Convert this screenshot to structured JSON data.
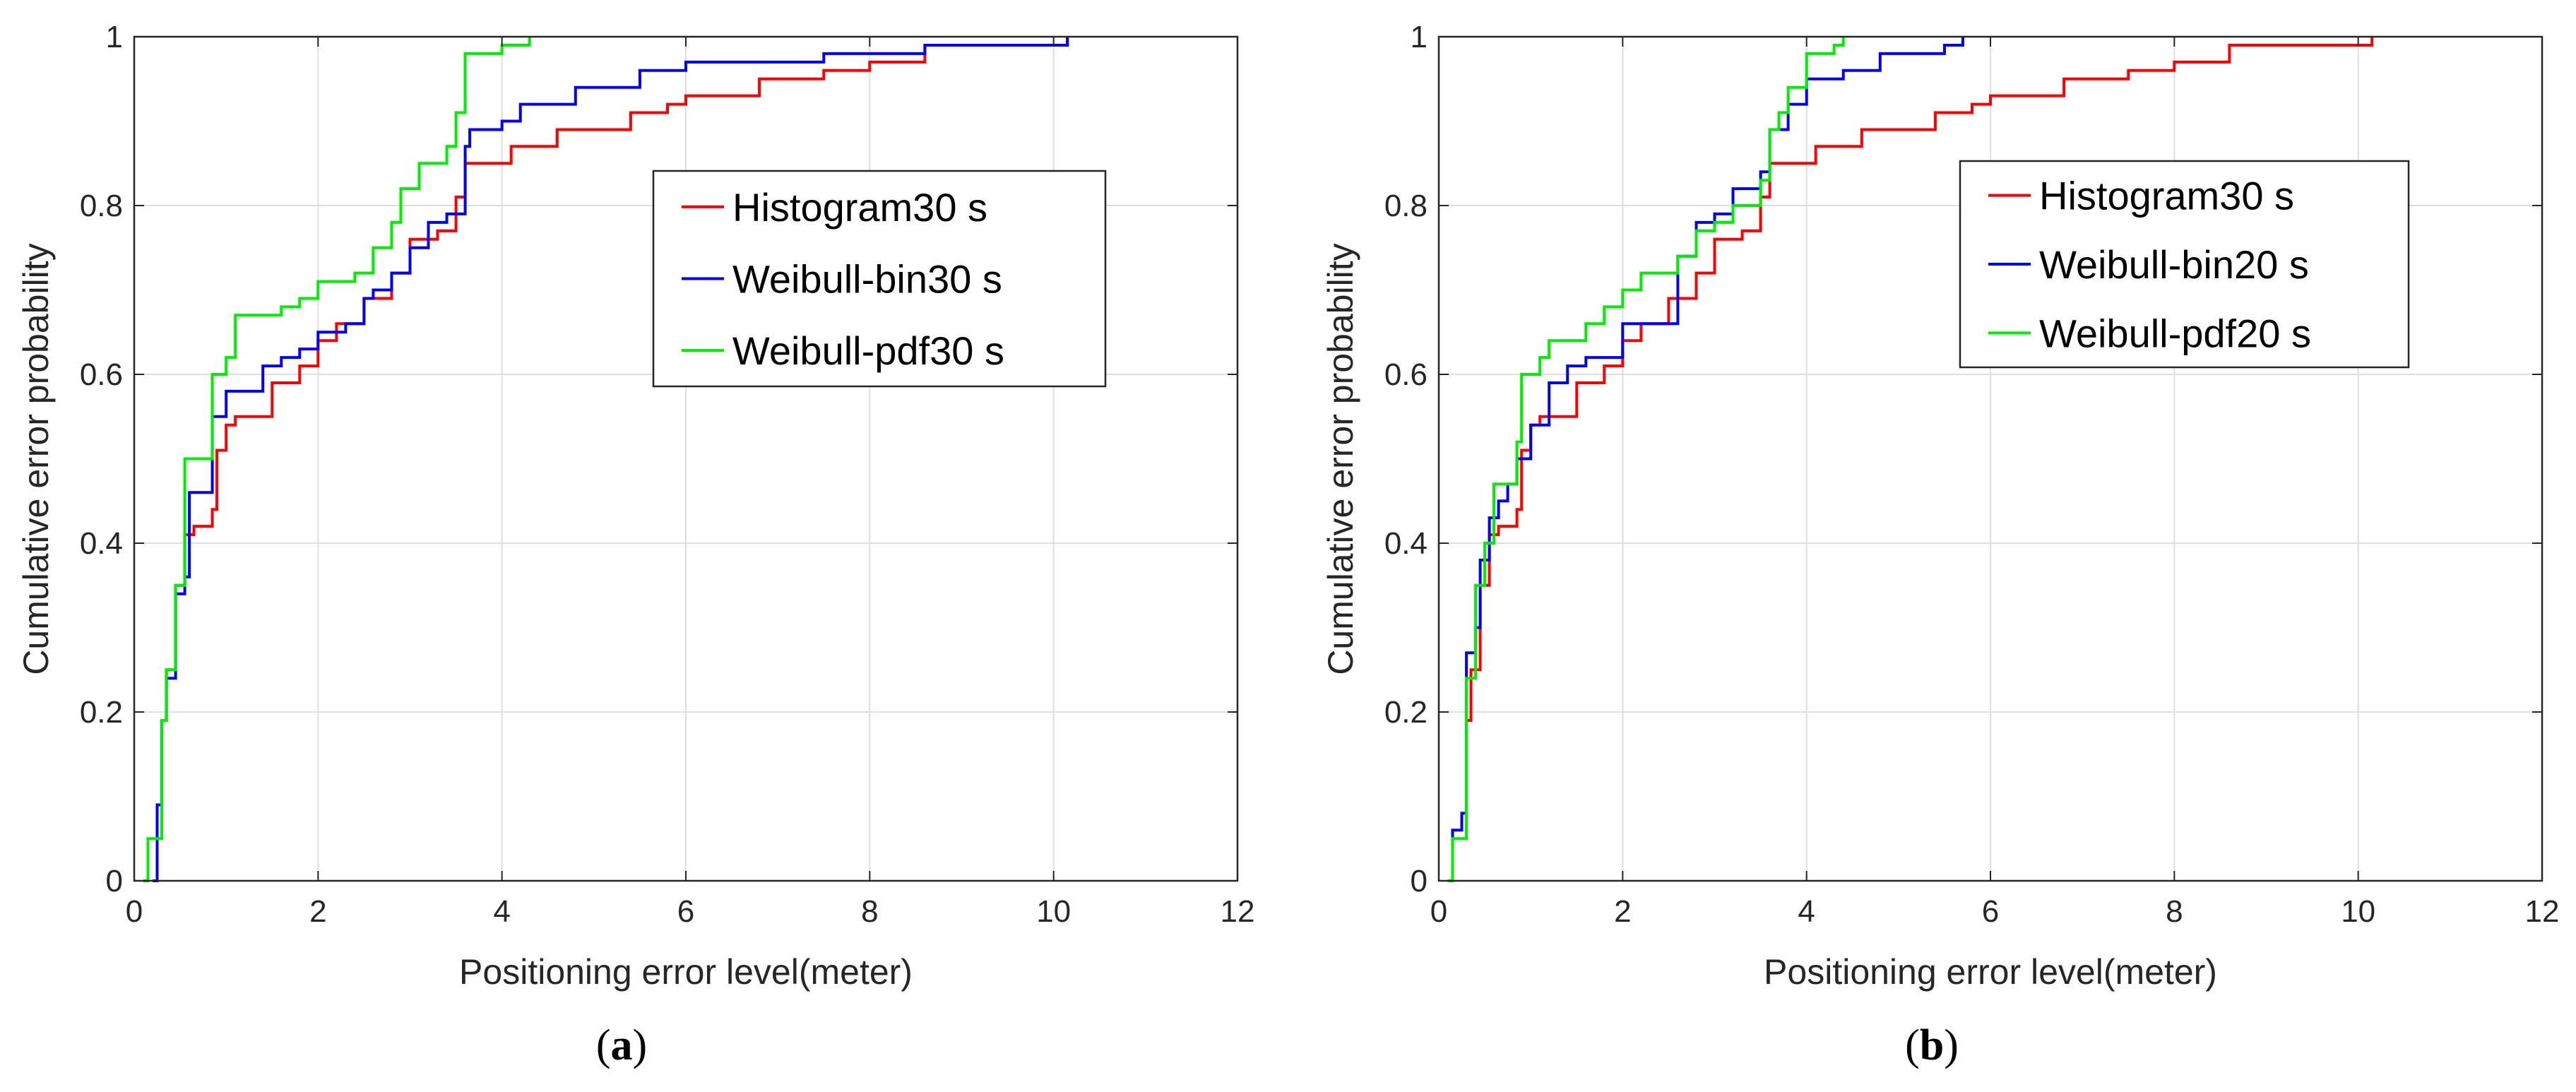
{
  "chart_data": [
    {
      "type": "line",
      "panel_label": "a",
      "xlabel": "Positioning error level(meter)",
      "ylabel": "Cumulative error probability",
      "xlim": [
        0,
        12
      ],
      "ylim": [
        0,
        1
      ],
      "xticks": [
        "0",
        "2",
        "4",
        "6",
        "8",
        "10",
        "12"
      ],
      "yticks": [
        "0",
        "0.2",
        "0.4",
        "0.6",
        "0.8",
        "1"
      ],
      "grid": true,
      "legend_position": "upper-right-inside",
      "series": [
        {
          "name": "Histogram30 s",
          "color": "#ff0000",
          "points": [
            [
              0.3,
              0.19
            ],
            [
              0.35,
              0.25
            ],
            [
              0.45,
              0.35
            ],
            [
              0.55,
              0.41
            ],
            [
              0.65,
              0.42
            ],
            [
              0.75,
              0.42
            ],
            [
              0.85,
              0.44
            ],
            [
              0.9,
              0.51
            ],
            [
              1.0,
              0.54
            ],
            [
              1.1,
              0.55
            ],
            [
              1.5,
              0.59
            ],
            [
              1.8,
              0.61
            ],
            [
              2.0,
              0.64
            ],
            [
              2.2,
              0.66
            ],
            [
              2.5,
              0.69
            ],
            [
              2.8,
              0.72
            ],
            [
              3.0,
              0.76
            ],
            [
              3.3,
              0.77
            ],
            [
              3.5,
              0.81
            ],
            [
              3.6,
              0.85
            ],
            [
              4.0,
              0.85
            ],
            [
              4.1,
              0.87
            ],
            [
              4.6,
              0.89
            ],
            [
              5.0,
              0.89
            ],
            [
              5.4,
              0.91
            ],
            [
              5.8,
              0.92
            ],
            [
              6.0,
              0.93
            ],
            [
              6.8,
              0.95
            ],
            [
              7.5,
              0.96
            ],
            [
              8.0,
              0.97
            ],
            [
              8.6,
              0.97
            ],
            [
              8.6,
              0.99
            ],
            [
              10.1,
              0.99
            ],
            [
              10.15,
              1.0
            ]
          ]
        },
        {
          "name": "Weibull-bin30 s",
          "color": "#0000ff",
          "points": [
            [
              0.2,
              0.0
            ],
            [
              0.25,
              0.09
            ],
            [
              0.3,
              0.19
            ],
            [
              0.35,
              0.24
            ],
            [
              0.45,
              0.34
            ],
            [
              0.55,
              0.36
            ],
            [
              0.6,
              0.46
            ],
            [
              0.8,
              0.46
            ],
            [
              0.85,
              0.55
            ],
            [
              1.0,
              0.58
            ],
            [
              1.3,
              0.58
            ],
            [
              1.4,
              0.61
            ],
            [
              1.6,
              0.62
            ],
            [
              1.8,
              0.63
            ],
            [
              2.0,
              0.65
            ],
            [
              2.3,
              0.66
            ],
            [
              2.5,
              0.69
            ],
            [
              2.6,
              0.7
            ],
            [
              2.8,
              0.72
            ],
            [
              3.0,
              0.75
            ],
            [
              3.2,
              0.78
            ],
            [
              3.4,
              0.79
            ],
            [
              3.6,
              0.87
            ],
            [
              3.65,
              0.89
            ],
            [
              4.0,
              0.9
            ],
            [
              4.2,
              0.92
            ],
            [
              4.5,
              0.92
            ],
            [
              4.8,
              0.94
            ],
            [
              5.5,
              0.96
            ],
            [
              6.0,
              0.97
            ],
            [
              6.8,
              0.97
            ],
            [
              7.5,
              0.98
            ],
            [
              8.0,
              0.98
            ],
            [
              8.6,
              0.99
            ],
            [
              10.1,
              0.99
            ],
            [
              10.15,
              1.0
            ]
          ]
        },
        {
          "name": "Weibull-pdf30 s",
          "color": "#00ee00",
          "points": [
            [
              0.1,
              0.0
            ],
            [
              0.15,
              0.05
            ],
            [
              0.3,
              0.19
            ],
            [
              0.35,
              0.25
            ],
            [
              0.45,
              0.35
            ],
            [
              0.55,
              0.5
            ],
            [
              0.8,
              0.5
            ],
            [
              0.85,
              0.6
            ],
            [
              1.0,
              0.62
            ],
            [
              1.1,
              0.67
            ],
            [
              1.6,
              0.68
            ],
            [
              1.8,
              0.69
            ],
            [
              2.0,
              0.71
            ],
            [
              2.4,
              0.72
            ],
            [
              2.6,
              0.75
            ],
            [
              2.8,
              0.78
            ],
            [
              2.9,
              0.82
            ],
            [
              3.1,
              0.85
            ],
            [
              3.4,
              0.87
            ],
            [
              3.5,
              0.91
            ],
            [
              3.6,
              0.98
            ],
            [
              3.9,
              0.98
            ],
            [
              4.0,
              0.99
            ],
            [
              4.3,
              1.0
            ]
          ]
        }
      ]
    },
    {
      "type": "line",
      "panel_label": "b",
      "xlabel": "Positioning error level(meter)",
      "ylabel": "Cumulative error probability",
      "xlim": [
        0,
        12
      ],
      "ylim": [
        0,
        1
      ],
      "xticks": [
        "0",
        "2",
        "4",
        "6",
        "8",
        "10",
        "12"
      ],
      "yticks": [
        "0",
        "0.2",
        "0.4",
        "0.6",
        "0.8",
        "1"
      ],
      "grid": true,
      "legend_position": "upper-right-inside",
      "series": [
        {
          "name": "Histogram30 s",
          "color": "#ff0000",
          "points": [
            [
              0.3,
              0.19
            ],
            [
              0.35,
              0.25
            ],
            [
              0.45,
              0.35
            ],
            [
              0.55,
              0.41
            ],
            [
              0.65,
              0.42
            ],
            [
              0.75,
              0.42
            ],
            [
              0.85,
              0.44
            ],
            [
              0.9,
              0.51
            ],
            [
              1.0,
              0.54
            ],
            [
              1.1,
              0.55
            ],
            [
              1.5,
              0.59
            ],
            [
              1.8,
              0.61
            ],
            [
              2.0,
              0.64
            ],
            [
              2.2,
              0.66
            ],
            [
              2.5,
              0.69
            ],
            [
              2.8,
              0.72
            ],
            [
              3.0,
              0.76
            ],
            [
              3.3,
              0.77
            ],
            [
              3.5,
              0.81
            ],
            [
              3.6,
              0.85
            ],
            [
              4.0,
              0.85
            ],
            [
              4.1,
              0.87
            ],
            [
              4.6,
              0.89
            ],
            [
              5.0,
              0.89
            ],
            [
              5.4,
              0.91
            ],
            [
              5.8,
              0.92
            ],
            [
              6.0,
              0.93
            ],
            [
              6.8,
              0.95
            ],
            [
              7.5,
              0.96
            ],
            [
              8.0,
              0.97
            ],
            [
              8.6,
              0.97
            ],
            [
              8.6,
              0.99
            ],
            [
              10.1,
              0.99
            ],
            [
              10.15,
              1.0
            ]
          ]
        },
        {
          "name": "Weibull-bin20 s",
          "color": "#0000ff",
          "points": [
            [
              0.1,
              0.0
            ],
            [
              0.15,
              0.06
            ],
            [
              0.25,
              0.08
            ],
            [
              0.3,
              0.27
            ],
            [
              0.4,
              0.3
            ],
            [
              0.45,
              0.38
            ],
            [
              0.55,
              0.43
            ],
            [
              0.65,
              0.45
            ],
            [
              0.75,
              0.47
            ],
            [
              0.85,
              0.5
            ],
            [
              1.0,
              0.54
            ],
            [
              1.2,
              0.59
            ],
            [
              1.4,
              0.61
            ],
            [
              1.6,
              0.62
            ],
            [
              1.8,
              0.62
            ],
            [
              2.0,
              0.66
            ],
            [
              2.5,
              0.66
            ],
            [
              2.6,
              0.74
            ],
            [
              2.8,
              0.78
            ],
            [
              3.0,
              0.79
            ],
            [
              3.2,
              0.82
            ],
            [
              3.5,
              0.84
            ],
            [
              3.6,
              0.89
            ],
            [
              3.8,
              0.92
            ],
            [
              4.0,
              0.95
            ],
            [
              4.4,
              0.96
            ],
            [
              4.8,
              0.98
            ],
            [
              5.5,
              0.99
            ],
            [
              5.7,
              1.0
            ]
          ]
        },
        {
          "name": "Weibull-pdf20 s",
          "color": "#00ee00",
          "points": [
            [
              0.1,
              0.0
            ],
            [
              0.15,
              0.05
            ],
            [
              0.3,
              0.24
            ],
            [
              0.4,
              0.35
            ],
            [
              0.5,
              0.4
            ],
            [
              0.6,
              0.47
            ],
            [
              0.75,
              0.47
            ],
            [
              0.85,
              0.52
            ],
            [
              0.9,
              0.6
            ],
            [
              1.1,
              0.62
            ],
            [
              1.2,
              0.64
            ],
            [
              1.6,
              0.66
            ],
            [
              1.8,
              0.68
            ],
            [
              2.0,
              0.7
            ],
            [
              2.2,
              0.72
            ],
            [
              2.6,
              0.74
            ],
            [
              2.8,
              0.77
            ],
            [
              3.0,
              0.78
            ],
            [
              3.2,
              0.8
            ],
            [
              3.5,
              0.83
            ],
            [
              3.6,
              0.89
            ],
            [
              3.7,
              0.91
            ],
            [
              3.8,
              0.94
            ],
            [
              4.0,
              0.98
            ],
            [
              4.3,
              0.99
            ],
            [
              4.4,
              1.0
            ]
          ]
        }
      ]
    }
  ]
}
